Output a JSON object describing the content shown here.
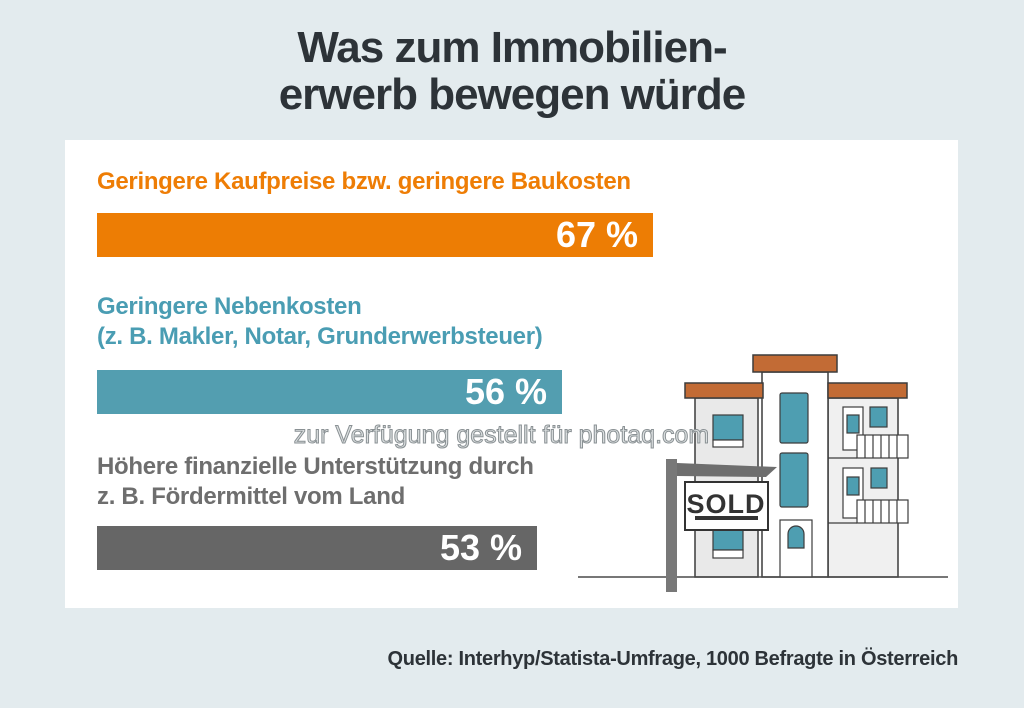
{
  "page": {
    "background": "#E3EBEE",
    "title_line1": "Was zum Immobilien-",
    "title_line2": "erwerb bewegen würde",
    "watermark": "zur Verfügung gestellt für photaq.com",
    "source": "Quelle: Interhyp/Statista-Umfrage, 1000 Befragte in Österreich"
  },
  "bars": [
    {
      "label": "Geringere Kaufpreise bzw. geringere Baukosten",
      "value": 67,
      "value_label": "67 %",
      "color": "#ED7D04",
      "label_color": "#EE7D05"
    },
    {
      "label": "Geringere Nebenkosten\n(z. B. Makler, Notar, Grunderwerbsteuer)",
      "value": 56,
      "value_label": "56 %",
      "color": "#539EB0",
      "label_color": "#4A9DB3"
    },
    {
      "label": "Höhere finanzielle Unterstützung durch\nz. B. Fördermittel vom Land",
      "value": 53,
      "value_label": "53 %",
      "color": "#666666",
      "label_color": "#6E6E6E"
    }
  ],
  "illustration": {
    "sign_text": "SOLD",
    "roof_color": "#C26B35",
    "window_color": "#4E9EB1"
  },
  "chart_data": {
    "type": "bar",
    "orientation": "horizontal",
    "title": "Was zum Immobilienerwerb bewegen würde",
    "categories": [
      "Geringere Kaufpreise bzw. geringere Baukosten",
      "Geringere Nebenkosten (z. B. Makler, Notar, Grunderwerbsteuer)",
      "Höhere finanzielle Unterstützung durch z. B. Fördermittel vom Land"
    ],
    "values": [
      67,
      56,
      53
    ],
    "unit": "%",
    "xlim": [
      0,
      100
    ],
    "colors": [
      "#ED7D04",
      "#539EB0",
      "#666666"
    ],
    "legend": "none",
    "grid": "off",
    "source": "Quelle: Interhyp/Statista-Umfrage, 1000 Befragte in Österreich"
  }
}
